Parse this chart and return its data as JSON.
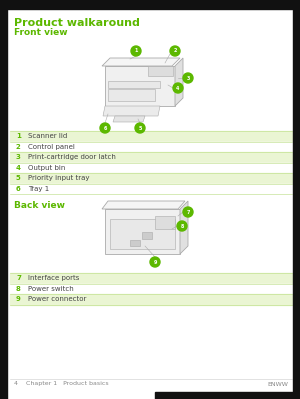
{
  "bg_color": "#ffffff",
  "black_bar_color": "#111111",
  "green_color": "#5cb800",
  "light_green_row": "#eaf5d3",
  "white_row": "#ffffff",
  "border_color": "#b8dc80",
  "text_color_dark": "#444444",
  "title": "Product walkaround",
  "front_view_label": "Front view",
  "back_view_label": "Back view",
  "front_items": [
    [
      "1",
      "Scanner lid"
    ],
    [
      "2",
      "Control panel"
    ],
    [
      "3",
      "Print-cartridge door latch"
    ],
    [
      "4",
      "Output bin"
    ],
    [
      "5",
      "Priority input tray"
    ],
    [
      "6",
      "Tray 1"
    ]
  ],
  "back_items": [
    [
      "7",
      "Interface ports"
    ],
    [
      "8",
      "Power switch"
    ],
    [
      "9",
      "Power connector"
    ]
  ],
  "footer_left": "4    Chapter 1   Product basics",
  "footer_right": "ENWW"
}
